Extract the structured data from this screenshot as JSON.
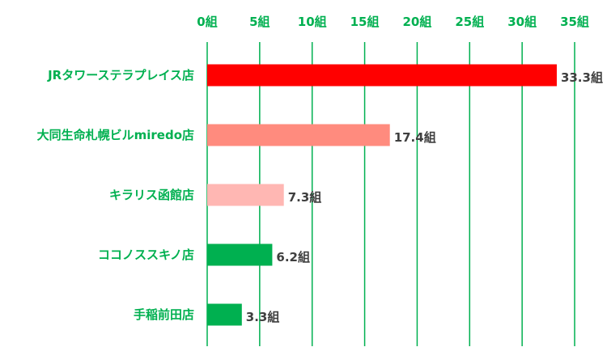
{
  "chart_data": {
    "type": "bar",
    "orientation": "horizontal",
    "categories": [
      "JRタワーステラプレイス店",
      "大同生命札幌ビルmiredo店",
      "キラリス函館店",
      "ココノススキノ店",
      "手稲前田店"
    ],
    "values": [
      33.3,
      17.4,
      7.3,
      6.2,
      3.3
    ],
    "data_labels": [
      "33.3組",
      "17.4組",
      "7.3組",
      "6.2組",
      "3.3組"
    ],
    "bar_colors": [
      "#ff0000",
      "#ff8b7e",
      "#ffb7b3",
      "#00b050",
      "#00b050"
    ],
    "xticks": [
      0,
      5,
      10,
      15,
      20,
      25,
      30,
      35
    ],
    "xtick_labels": [
      "0組",
      "5組",
      "10組",
      "15組",
      "20組",
      "25組",
      "30組",
      "35組"
    ],
    "xlim": [
      0,
      35
    ],
    "x_axis_position": "top",
    "grid": true,
    "title": "",
    "xlabel": "",
    "ylabel": ""
  },
  "colors": {
    "category_text": "#00b050",
    "tick_text": "#00b050",
    "gridline": "#00b050",
    "data_label_text": "#3f3f3f"
  }
}
